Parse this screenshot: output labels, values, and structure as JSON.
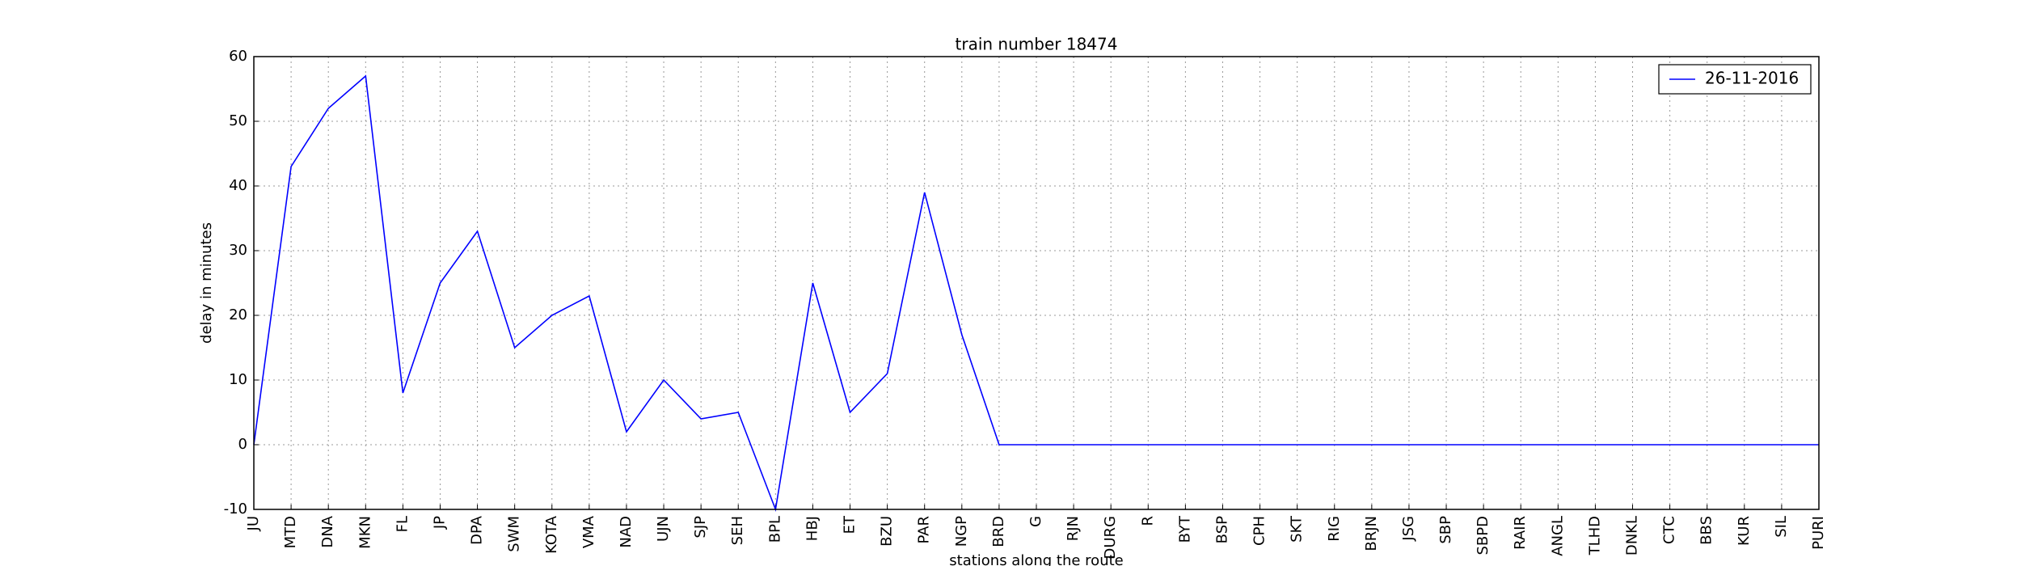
{
  "chart_data": {
    "type": "line",
    "title": "train number 18474",
    "xlabel": "stations along the route",
    "ylabel": "delay in minutes",
    "categories": [
      "JU",
      "MTD",
      "DNA",
      "MKN",
      "FL",
      "JP",
      "DPA",
      "SWM",
      "KOTA",
      "VMA",
      "NAD",
      "UJN",
      "SJP",
      "SEH",
      "BPL",
      "HBJ",
      "ET",
      "BZU",
      "PAR",
      "NGP",
      "BRD",
      "G",
      "RJN",
      "DURG",
      "R",
      "BYT",
      "BSP",
      "CPH",
      "SKT",
      "RIG",
      "BRJN",
      "JSG",
      "SBP",
      "SBPD",
      "RAIR",
      "ANGL",
      "TLHD",
      "DNKL",
      "CTC",
      "BBS",
      "KUR",
      "SIL",
      "PURI"
    ],
    "series": [
      {
        "name": "26-11-2016",
        "color": "#0000ff",
        "values": [
          0,
          43,
          52,
          57,
          8,
          25,
          33,
          15,
          20,
          23,
          2,
          10,
          4,
          5,
          -10,
          25,
          5,
          11,
          39,
          17,
          0,
          0,
          0,
          0,
          0,
          0,
          0,
          0,
          0,
          0,
          0,
          0,
          0,
          0,
          0,
          0,
          0,
          0,
          0,
          0,
          0,
          0,
          0
        ]
      }
    ],
    "ylim": [
      -10,
      60
    ],
    "yticks": [
      -10,
      0,
      10,
      20,
      30,
      40,
      50,
      60
    ],
    "grid": true,
    "legend": "upper right"
  }
}
